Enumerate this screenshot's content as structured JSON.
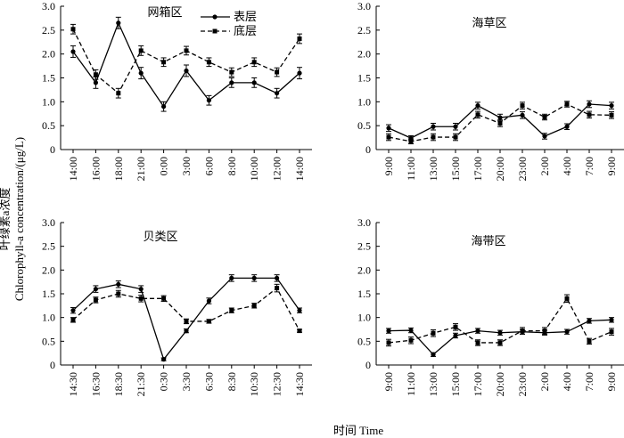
{
  "ylabel_cn": "叶绿素a浓度",
  "ylabel_en": "Chlorophyll-a concentration/(μg/L)",
  "xlabel": "时间 Time",
  "legend": {
    "surface": "表层",
    "bottom": "底层"
  },
  "chart_data": [
    {
      "type": "line",
      "title": "网箱区",
      "categories": [
        "14:00",
        "16:00",
        "18:00",
        "21:00",
        "0:00",
        "3:00",
        "6:00",
        "8:00",
        "10:00",
        "12:00",
        "14:00"
      ],
      "ylim": [
        0,
        3.0
      ],
      "yticks": [
        "0",
        "0.5",
        "1.0",
        "1.5",
        "2.0",
        "2.5",
        "3.0"
      ],
      "series": [
        {
          "name": "表层",
          "values": [
            2.05,
            1.4,
            2.65,
            1.6,
            0.9,
            1.65,
            1.03,
            1.4,
            1.4,
            1.18,
            1.6
          ],
          "errors": [
            0.12,
            0.12,
            0.12,
            0.12,
            0.1,
            0.12,
            0.1,
            0.1,
            0.1,
            0.1,
            0.12
          ]
        },
        {
          "name": "底层",
          "values": [
            2.52,
            1.57,
            1.18,
            2.07,
            1.83,
            2.07,
            1.83,
            1.62,
            1.83,
            1.62,
            2.32
          ],
          "errors": [
            0.1,
            0.1,
            0.1,
            0.1,
            0.09,
            0.09,
            0.09,
            0.09,
            0.09,
            0.09,
            0.1
          ]
        }
      ]
    },
    {
      "type": "line",
      "title": "海草区",
      "categories": [
        "9:00",
        "11:00",
        "13:00",
        "15:00",
        "17:00",
        "20:00",
        "23:00",
        "2:00",
        "4:00",
        "7:00",
        "9:00"
      ],
      "ylim": [
        0,
        3.0
      ],
      "yticks": [
        "0",
        "0.5",
        "1.0",
        "1.5",
        "2.0",
        "2.5",
        "3.0"
      ],
      "series": [
        {
          "name": "表层",
          "values": [
            0.45,
            0.24,
            0.48,
            0.48,
            0.92,
            0.67,
            0.72,
            0.28,
            0.48,
            0.95,
            0.92
          ],
          "errors": [
            0.07,
            0.05,
            0.07,
            0.07,
            0.07,
            0.07,
            0.07,
            0.06,
            0.06,
            0.07,
            0.07
          ]
        },
        {
          "name": "底层",
          "values": [
            0.26,
            0.17,
            0.26,
            0.26,
            0.73,
            0.55,
            0.92,
            0.68,
            0.95,
            0.73,
            0.72
          ],
          "errors": [
            0.07,
            0.05,
            0.07,
            0.07,
            0.07,
            0.07,
            0.07,
            0.06,
            0.06,
            0.07,
            0.07
          ]
        }
      ]
    },
    {
      "type": "line",
      "title": "贝类区",
      "categories": [
        "14:30",
        "16:30",
        "18:30",
        "21:30",
        "0:30",
        "3:30",
        "6:30",
        "8:30",
        "10:30",
        "12:30",
        "14:30"
      ],
      "ylim": [
        0,
        3.0
      ],
      "yticks": [
        "0",
        "0.5",
        "1.0",
        "1.5",
        "2.0",
        "2.5",
        "3.0"
      ],
      "series": [
        {
          "name": "表层",
          "values": [
            1.15,
            1.6,
            1.7,
            1.6,
            0.12,
            0.72,
            1.35,
            1.83,
            1.83,
            1.83,
            1.15
          ],
          "errors": [
            0.06,
            0.07,
            0.07,
            0.07,
            0.03,
            0.04,
            0.06,
            0.07,
            0.07,
            0.07,
            0.05
          ]
        },
        {
          "name": "底层",
          "values": [
            0.95,
            1.37,
            1.5,
            1.4,
            1.4,
            0.92,
            0.92,
            1.15,
            1.25,
            1.62,
            0.72
          ],
          "errors": [
            0.05,
            0.06,
            0.07,
            0.07,
            0.06,
            0.05,
            0.04,
            0.05,
            0.05,
            0.08,
            0.03
          ]
        }
      ]
    },
    {
      "type": "line",
      "title": "海带区",
      "categories": [
        "9:00",
        "11:00",
        "13:00",
        "15:00",
        "17:00",
        "20:00",
        "23:00",
        "2:00",
        "4:00",
        "7:00",
        "9:00"
      ],
      "ylim": [
        0,
        3.0
      ],
      "yticks": [
        "0",
        "0.5",
        "1.0",
        "1.5",
        "2.0",
        "2.5",
        "3.0"
      ],
      "series": [
        {
          "name": "表层",
          "values": [
            0.72,
            0.73,
            0.22,
            0.62,
            0.72,
            0.68,
            0.7,
            0.68,
            0.7,
            0.93,
            0.95
          ],
          "errors": [
            0.05,
            0.05,
            0.04,
            0.05,
            0.05,
            0.05,
            0.05,
            0.05,
            0.05,
            0.05,
            0.05
          ]
        },
        {
          "name": "底层",
          "values": [
            0.47,
            0.52,
            0.67,
            0.8,
            0.47,
            0.47,
            0.72,
            0.72,
            1.4,
            0.5,
            0.7
          ],
          "errors": [
            0.07,
            0.07,
            0.07,
            0.07,
            0.06,
            0.06,
            0.07,
            0.07,
            0.08,
            0.06,
            0.07
          ]
        }
      ]
    }
  ]
}
